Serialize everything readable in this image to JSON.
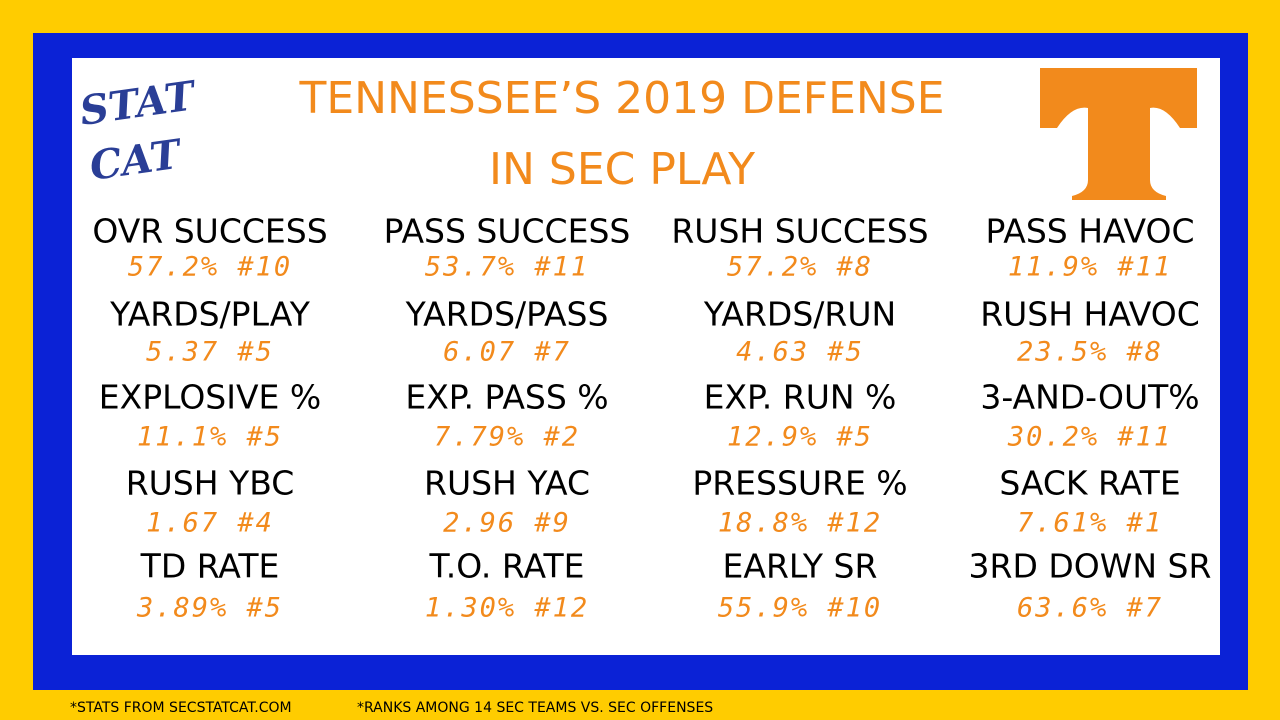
{
  "title": {
    "lines": [
      "TENNESSEE’S 2019 DEFENSE",
      "IN SEC PLAY"
    ]
  },
  "logo": {
    "lines": [
      "STAT",
      "CAT"
    ]
  },
  "stats": [
    [
      {
        "label": "OVR SUCCESS",
        "value": "57.2% #10"
      },
      {
        "label": "PASS SUCCESS",
        "value": "53.7% #11"
      },
      {
        "label": "RUSH SUCCESS",
        "value": "57.2% #8"
      },
      {
        "label": "PASS HAVOC",
        "value": "11.9% #11"
      }
    ],
    [
      {
        "label": "YARDS/PLAY",
        "value": "5.37 #5"
      },
      {
        "label": "YARDS/PASS",
        "value": "6.07 #7"
      },
      {
        "label": "YARDS/RUN",
        "value": "4.63 #5"
      },
      {
        "label": "RUSH HAVOC",
        "value": "23.5% #8"
      }
    ],
    [
      {
        "label": "EXPLOSIVE %",
        "value": "11.1% #5"
      },
      {
        "label": "EXP. PASS %",
        "value": "7.79% #2"
      },
      {
        "label": "EXP. RUN %",
        "value": "12.9% #5"
      },
      {
        "label": "3-AND-OUT%",
        "value": "30.2% #11"
      }
    ],
    [
      {
        "label": "RUSH YBC",
        "value": "1.67 #4"
      },
      {
        "label": "RUSH YAC",
        "value": "2.96 #9"
      },
      {
        "label": "PRESSURE %",
        "value": "18.8% #12"
      },
      {
        "label": "SACK RATE",
        "value": "7.61% #1"
      }
    ],
    [
      {
        "label": "TD RATE",
        "value": "3.89% #5"
      },
      {
        "label": "T.O. RATE",
        "value": "1.30% #12"
      },
      {
        "label": "EARLY SR",
        "value": "55.9% #10"
      },
      {
        "label": "3RD DOWN SR",
        "value": "63.6% #7"
      }
    ]
  ],
  "footer": [
    "*STATS FROM SECSTATCAT.COM",
    "*RANKS AMONG 14 SEC TEAMS VS. SEC OFFENSES"
  ]
}
